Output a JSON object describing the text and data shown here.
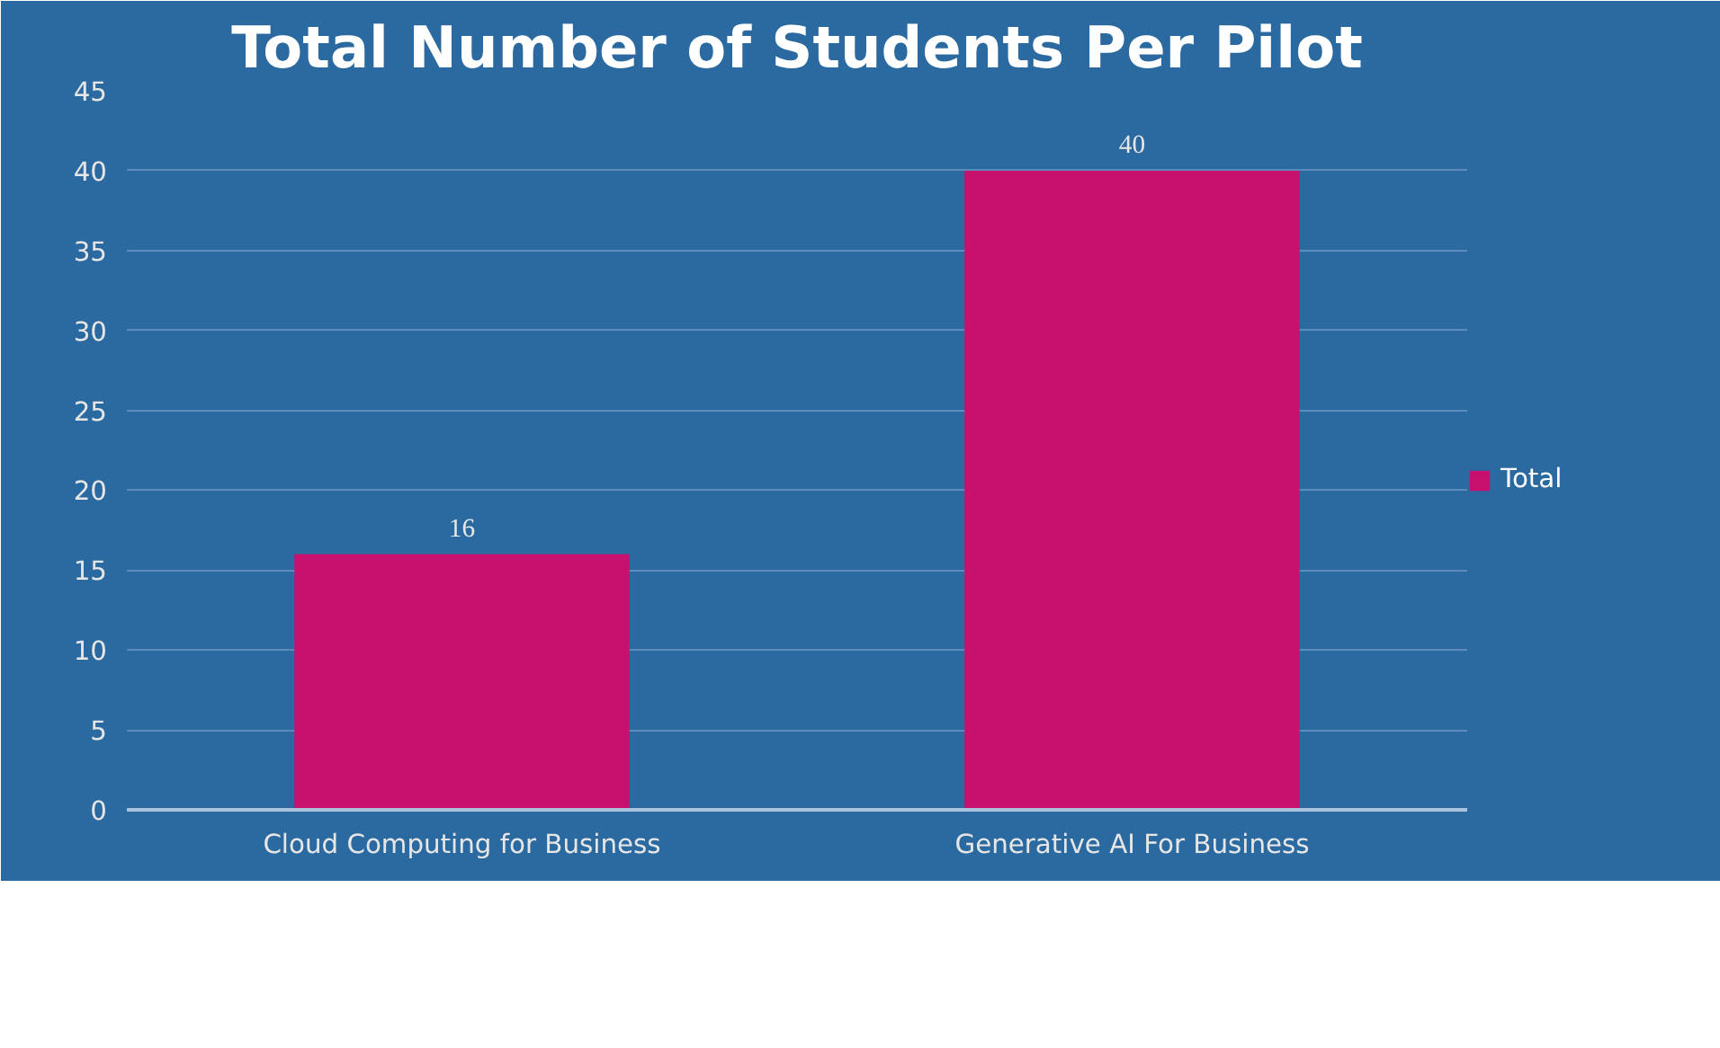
{
  "chart_data": {
    "type": "bar",
    "title": "Total Number of Students Per Pilot",
    "categories": [
      "Cloud Computing for Business",
      "Generative AI For Business"
    ],
    "series": [
      {
        "name": "Total",
        "color": "#c8106e",
        "values": [
          16,
          40
        ]
      }
    ],
    "ylim": [
      0,
      45
    ],
    "yticks": [
      0,
      5,
      10,
      15,
      20,
      25,
      30,
      35,
      40,
      45
    ],
    "grid": "y",
    "legend": "right",
    "data_labels": true
  }
}
